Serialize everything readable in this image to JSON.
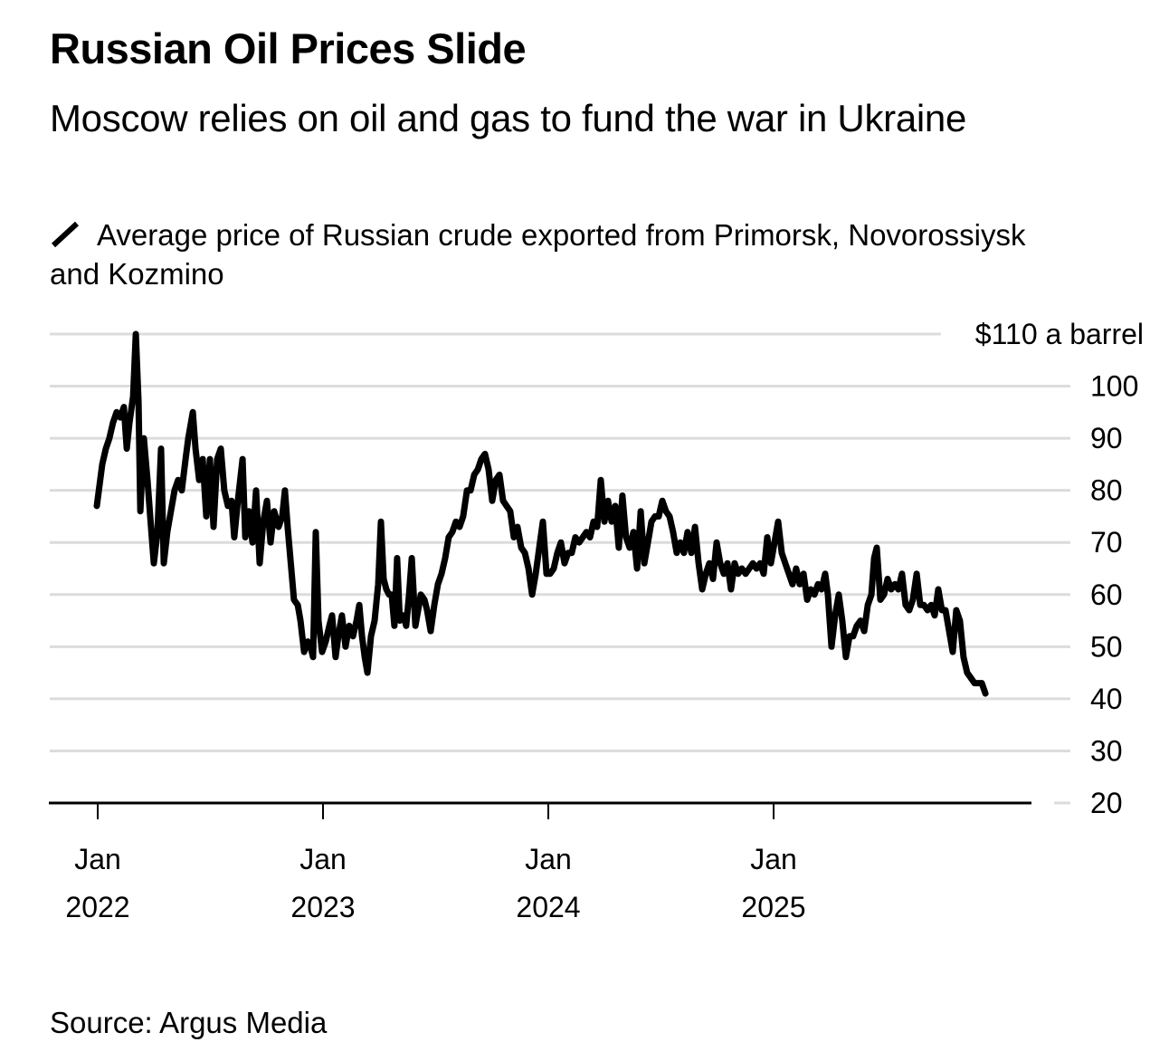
{
  "header": {
    "title": "Russian Oil Prices Slide",
    "subtitle": "Moscow relies on oil and gas to fund the war in Ukraine"
  },
  "legend": {
    "icon": "line-swatch-icon",
    "label": "Average price of Russian crude exported from Primorsk, Novorossiysk and Kozmino",
    "color": "#000000"
  },
  "footer": {
    "source": "Source: Argus Media"
  },
  "colors": {
    "line": "#000000",
    "grid": "#dcdcdc",
    "axis": "#000000",
    "background": "#ffffff"
  },
  "chart_data": {
    "type": "line",
    "title": "Russian Oil Prices Slide",
    "subtitle": "Moscow relies on oil and gas to fund the war in Ukraine",
    "xlabel": "",
    "ylabel": "$ a barrel",
    "ylim": [
      20,
      110
    ],
    "xlim": [
      2021.8,
      2026.15
    ],
    "grid": true,
    "legend_position": "top-left",
    "y_ticks": [
      {
        "value": 110,
        "label": "$110 a barrel"
      },
      {
        "value": 100,
        "label": "100"
      },
      {
        "value": 90,
        "label": "90"
      },
      {
        "value": 80,
        "label": "80"
      },
      {
        "value": 70,
        "label": "70"
      },
      {
        "value": 60,
        "label": "60"
      },
      {
        "value": 50,
        "label": "50"
      },
      {
        "value": 40,
        "label": "40"
      },
      {
        "value": 30,
        "label": "30"
      },
      {
        "value": 20,
        "label": "20"
      }
    ],
    "x_ticks": [
      {
        "value": 2022.0,
        "label_month": "Jan",
        "label_year": "2022"
      },
      {
        "value": 2023.0,
        "label_month": "Jan",
        "label_year": "2023"
      },
      {
        "value": 2024.0,
        "label_month": "Jan",
        "label_year": "2024"
      },
      {
        "value": 2025.0,
        "label_month": "Jan",
        "label_year": "2025"
      }
    ],
    "series": [
      {
        "name": "Average price of Russian crude exported from Primorsk, Novorossiysk and Kozmino",
        "x": [
          2021.996,
          2022.008,
          2022.02,
          2022.036,
          2022.052,
          2022.068,
          2022.084,
          2022.1,
          2022.116,
          2022.129,
          2022.141,
          2022.157,
          2022.169,
          2022.181,
          2022.189,
          2022.205,
          2022.221,
          2022.233,
          2022.249,
          2022.265,
          2022.281,
          2022.293,
          2022.309,
          2022.325,
          2022.341,
          2022.357,
          2022.373,
          2022.39,
          2022.402,
          2022.422,
          2022.434,
          2022.45,
          2022.466,
          2022.482,
          2022.498,
          2022.514,
          2022.53,
          2022.546,
          2022.562,
          2022.578,
          2022.594,
          2022.606,
          2022.622,
          2022.643,
          2022.655,
          2022.671,
          2022.687,
          2022.703,
          2022.719,
          2022.735,
          2022.751,
          2022.767,
          2022.783,
          2022.803,
          2022.819,
          2022.831,
          2022.843,
          2022.859,
          2022.871,
          2022.888,
          2022.9,
          2022.916,
          2022.932,
          2022.944,
          2022.956,
          2022.968,
          2022.98,
          2022.996,
          2023.012,
          2023.028,
          2023.04,
          2023.056,
          2023.068,
          2023.084,
          2023.1,
          2023.116,
          2023.133,
          2023.149,
          2023.161,
          2023.173,
          2023.185,
          2023.197,
          2023.213,
          2023.229,
          2023.245,
          2023.257,
          2023.269,
          2023.281,
          2023.293,
          2023.305,
          2023.317,
          2023.329,
          2023.341,
          2023.357,
          2023.369,
          2023.382,
          2023.394,
          2023.41,
          2023.422,
          2023.434,
          2023.45,
          2023.462,
          2023.478,
          2023.494,
          2023.51,
          2023.526,
          2023.542,
          2023.558,
          2023.574,
          2023.59,
          2023.606,
          2023.622,
          2023.639,
          2023.655,
          2023.671,
          2023.687,
          2023.703,
          2023.719,
          2023.735,
          2023.751,
          2023.767,
          2023.783,
          2023.799,
          2023.815,
          2023.831,
          2023.847,
          2023.863,
          2023.88,
          2023.896,
          2023.912,
          2023.928,
          2023.944,
          2023.96,
          2023.976,
          2023.992,
          2024.008,
          2024.024,
          2024.04,
          2024.056,
          2024.072,
          2024.088,
          2024.104,
          2024.12,
          2024.137,
          2024.153,
          2024.169,
          2024.185,
          2024.201,
          2024.217,
          2024.233,
          2024.249,
          2024.265,
          2024.281,
          2024.297,
          2024.313,
          2024.329,
          2024.345,
          2024.361,
          2024.378,
          2024.394,
          2024.41,
          2024.426,
          2024.442,
          2024.458,
          2024.474,
          2024.49,
          2024.506,
          2024.522,
          2024.538,
          2024.554,
          2024.57,
          2024.586,
          2024.602,
          2024.618,
          2024.635,
          2024.651,
          2024.667,
          2024.683,
          2024.699,
          2024.715,
          2024.731,
          2024.747,
          2024.763,
          2024.779,
          2024.795,
          2024.811,
          2024.827,
          2024.843,
          2024.859,
          2024.876,
          2024.892,
          2024.908,
          2024.924,
          2024.94,
          2024.956,
          2024.972,
          2024.988,
          2025.004,
          2025.02,
          2025.036,
          2025.052,
          2025.068,
          2025.084,
          2025.1,
          2025.116,
          2025.133,
          2025.149,
          2025.165,
          2025.181,
          2025.197,
          2025.213,
          2025.229,
          2025.241,
          2025.257,
          2025.273,
          2025.289,
          2025.305,
          2025.321,
          2025.337,
          2025.353,
          2025.369,
          2025.386,
          2025.402,
          2025.418,
          2025.434,
          2025.446,
          2025.458,
          2025.474,
          2025.49,
          2025.506,
          2025.522,
          2025.538,
          2025.554,
          2025.57,
          2025.586,
          2025.602,
          2025.618,
          2025.635,
          2025.651,
          2025.667,
          2025.683,
          2025.699,
          2025.715,
          2025.731,
          2025.747,
          2025.763,
          2025.779,
          2025.795,
          2025.811,
          2025.827,
          2025.843,
          2025.859,
          2025.876,
          2025.892,
          2025.908,
          2025.924,
          2025.94
        ],
        "y": [
          77,
          81,
          85,
          88,
          90,
          93,
          95,
          94,
          96,
          88,
          93,
          98,
          110,
          97,
          76,
          90,
          82,
          75,
          66,
          72,
          88,
          66,
          72,
          76,
          80,
          82,
          80,
          86,
          90,
          95,
          88,
          82,
          86,
          75,
          86,
          73,
          86,
          88,
          80,
          77,
          78,
          71,
          78,
          86,
          71,
          76,
          70,
          80,
          66,
          74,
          78,
          70,
          76,
          73,
          75,
          80,
          73,
          65,
          59,
          58,
          55,
          49,
          51,
          50,
          48,
          72,
          55,
          49,
          51,
          54,
          56,
          48,
          52,
          56,
          50,
          54,
          52,
          55,
          58,
          52,
          48,
          45,
          52,
          55,
          62,
          74,
          63,
          61,
          60,
          60,
          54,
          67,
          55,
          56,
          54,
          60,
          67,
          54,
          57,
          60,
          59,
          57,
          53,
          58,
          62,
          64,
          67,
          71,
          72,
          74,
          73,
          75,
          80,
          80,
          83,
          84,
          86,
          87,
          84,
          78,
          82,
          83,
          78,
          77,
          76,
          71,
          73,
          69,
          68,
          65,
          60,
          64,
          69,
          74,
          64,
          64,
          65,
          68,
          70,
          66,
          68,
          68,
          71,
          70,
          71,
          72,
          71,
          74,
          73,
          82,
          74,
          78,
          74,
          77,
          69,
          79,
          71,
          69,
          72,
          65,
          76,
          66,
          70,
          74,
          75,
          75,
          78,
          76,
          75,
          72,
          68,
          70,
          68,
          72,
          68,
          73,
          66,
          61,
          64,
          66,
          63,
          70,
          66,
          64,
          66,
          61,
          66,
          64,
          65,
          64,
          65,
          66,
          65,
          66,
          64,
          71,
          66,
          70,
          74,
          68,
          66,
          64,
          62,
          65,
          62,
          64,
          59,
          61,
          60,
          62,
          61,
          64,
          60,
          50,
          56,
          60,
          55,
          48,
          52,
          52,
          54,
          55,
          53,
          58,
          60,
          67,
          69,
          59,
          60,
          63,
          61,
          62,
          61,
          64,
          58,
          57,
          59,
          64,
          58,
          58,
          57,
          58,
          56,
          61,
          57,
          57,
          53,
          49,
          57,
          55,
          48,
          45,
          44,
          43,
          43,
          43,
          41
        ]
      }
    ]
  }
}
